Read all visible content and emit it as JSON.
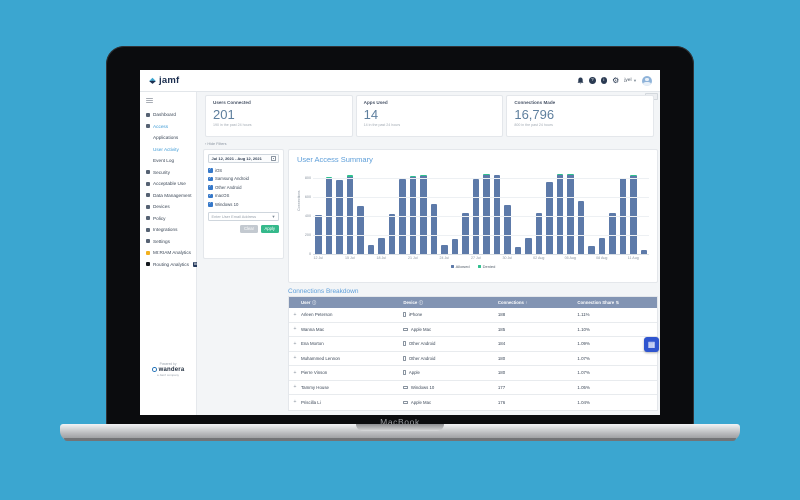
{
  "device": {
    "label": "MacBook"
  },
  "header": {
    "logo_text": "jamf",
    "user_name": "jyel",
    "icons": [
      "notifications-bell-icon",
      "help-icon",
      "info-icon",
      "settings-gear-icon"
    ]
  },
  "sidebar": {
    "items": [
      {
        "label": "Dashboard",
        "icon": "dashboard-icon"
      },
      {
        "label": "Access",
        "icon": "access-icon",
        "active": true
      },
      {
        "label": "Applications",
        "sub": true
      },
      {
        "label": "User Activity",
        "sub": true,
        "active": true
      },
      {
        "label": "Event Log",
        "sub": true
      },
      {
        "label": "Security",
        "icon": "security-icon"
      },
      {
        "label": "Acceptable Use",
        "icon": "acceptable-use-icon"
      },
      {
        "label": "Data Management",
        "icon": "data-management-icon"
      },
      {
        "label": "Devices",
        "icon": "devices-icon"
      },
      {
        "label": "Policy",
        "icon": "policy-icon"
      },
      {
        "label": "Integrations",
        "icon": "integrations-icon"
      },
      {
        "label": "Settings",
        "icon": "settings-icon"
      },
      {
        "label": "MI:RIAM Analytics",
        "icon": "miriam-analytics-icon"
      },
      {
        "label": "Routing Analytics",
        "icon": "routing-analytics-icon",
        "badge": "BETA"
      }
    ],
    "footer": {
      "powered_by": "Powered by",
      "brand": "wandera",
      "tagline": "a Jamf company"
    }
  },
  "stats": [
    {
      "label": "Users Connected",
      "value": "201",
      "sub": "190 in the past 24 hours"
    },
    {
      "label": "Apps Used",
      "value": "14",
      "sub": "14 in the past 24 hours"
    },
    {
      "label": "Connections Made",
      "value": "16,796",
      "sub": "800 in the past 24 hours"
    }
  ],
  "filters": {
    "hide_label": "‹ Hide Filters",
    "date_range": "Jul 12, 2021 - Aug 12, 2021",
    "checkboxes": [
      "iOS",
      "Samsung Android",
      "Other Android",
      "macOS",
      "Windows 10"
    ],
    "email_placeholder": "Enter User Email Address",
    "clear_label": "Clear",
    "apply_label": "Apply"
  },
  "chart_data": {
    "type": "bar",
    "stacked": true,
    "title": "User Access Summary",
    "ylabel": "Connections",
    "ylim": [
      0,
      900
    ],
    "yticks": [
      0,
      200,
      400,
      600,
      800
    ],
    "grid": true,
    "legend_position": "bottom",
    "categories": [
      "12 Jul",
      "13 Jul",
      "14 Jul",
      "15 Jul",
      "16 Jul",
      "17 Jul",
      "18 Jul",
      "19 Jul",
      "20 Jul",
      "21 Jul",
      "22 Jul",
      "23 Jul",
      "24 Jul",
      "25 Jul",
      "26 Jul",
      "27 Jul",
      "28 Jul",
      "29 Jul",
      "30 Jul",
      "31 Jul",
      "01 Aug",
      "02 Aug",
      "03 Aug",
      "04 Aug",
      "05 Aug",
      "06 Aug",
      "07 Aug",
      "08 Aug",
      "09 Aug",
      "10 Aug",
      "11 Aug",
      "12 Aug"
    ],
    "x_ticks": [
      {
        "index": 0,
        "label": "12 Jul"
      },
      {
        "index": 3,
        "label": "15 Jul"
      },
      {
        "index": 6,
        "label": "18 Jul"
      },
      {
        "index": 9,
        "label": "21 Jul"
      },
      {
        "index": 12,
        "label": "24 Jul"
      },
      {
        "index": 15,
        "label": "27 Jul"
      },
      {
        "index": 18,
        "label": "30 Jul"
      },
      {
        "index": 21,
        "label": "02 Aug"
      },
      {
        "index": 24,
        "label": "05 Aug"
      },
      {
        "index": 27,
        "label": "08 Aug"
      },
      {
        "index": 30,
        "label": "11 Aug"
      }
    ],
    "series": [
      {
        "name": "Allowed",
        "color": "#5d7aa9",
        "values": [
          405,
          795,
          775,
          810,
          505,
          95,
          170,
          420,
          790,
          805,
          820,
          525,
          95,
          160,
          430,
          790,
          830,
          825,
          510,
          75,
          170,
          425,
          750,
          825,
          830,
          550,
          85,
          170,
          425,
          790,
          815,
          40
        ]
      },
      {
        "name": "Denied",
        "color": "#2fbf8e",
        "values": [
          0,
          12,
          0,
          15,
          0,
          0,
          0,
          0,
          0,
          15,
          12,
          0,
          0,
          0,
          0,
          0,
          6,
          0,
          0,
          0,
          0,
          0,
          0,
          12,
          8,
          0,
          0,
          0,
          0,
          10,
          15,
          0
        ]
      }
    ]
  },
  "table": {
    "title": "Connections Breakdown",
    "columns": [
      {
        "label": "User",
        "icon": "info"
      },
      {
        "label": "Device",
        "icon": "info"
      },
      {
        "label": "Connections",
        "icon": "sort-asc"
      },
      {
        "label": "Connection Share",
        "icon": "sort"
      }
    ],
    "rows": [
      {
        "user": "Arleen Peterson",
        "device": "iPhone",
        "device_type": "phone",
        "connections": "188",
        "share": "1.11%"
      },
      {
        "user": "Wanna Mac",
        "device": "Apple Mac",
        "device_type": "laptop",
        "connections": "185",
        "share": "1.10%"
      },
      {
        "user": "Ena Morton",
        "device": "Other Android",
        "device_type": "phone",
        "connections": "184",
        "share": "1.09%"
      },
      {
        "user": "Muhammed Lennon",
        "device": "Other Android",
        "device_type": "phone",
        "connections": "180",
        "share": "1.07%"
      },
      {
        "user": "Pierre Vinson",
        "device": "Apple",
        "device_type": "phone",
        "connections": "180",
        "share": "1.07%"
      },
      {
        "user": "Tammy House",
        "device": "Windows 10",
        "device_type": "laptop",
        "connections": "177",
        "share": "1.05%"
      },
      {
        "user": "Priscilla Li",
        "device": "Apple Mac",
        "device_type": "laptop",
        "connections": "176",
        "share": "1.04%"
      }
    ]
  },
  "colors": {
    "page_background": "#3ba6d0",
    "accent_title_blue": "#5d9ed9",
    "bar_allowed": "#5d7aa9",
    "bar_denied": "#2fbf8e",
    "apply_green": "#35b98b",
    "table_header": "#8294b3",
    "stat_value": "#5e7f9e",
    "checkbox_blue": "#3578c9",
    "widget_blue": "#2f55cf"
  }
}
